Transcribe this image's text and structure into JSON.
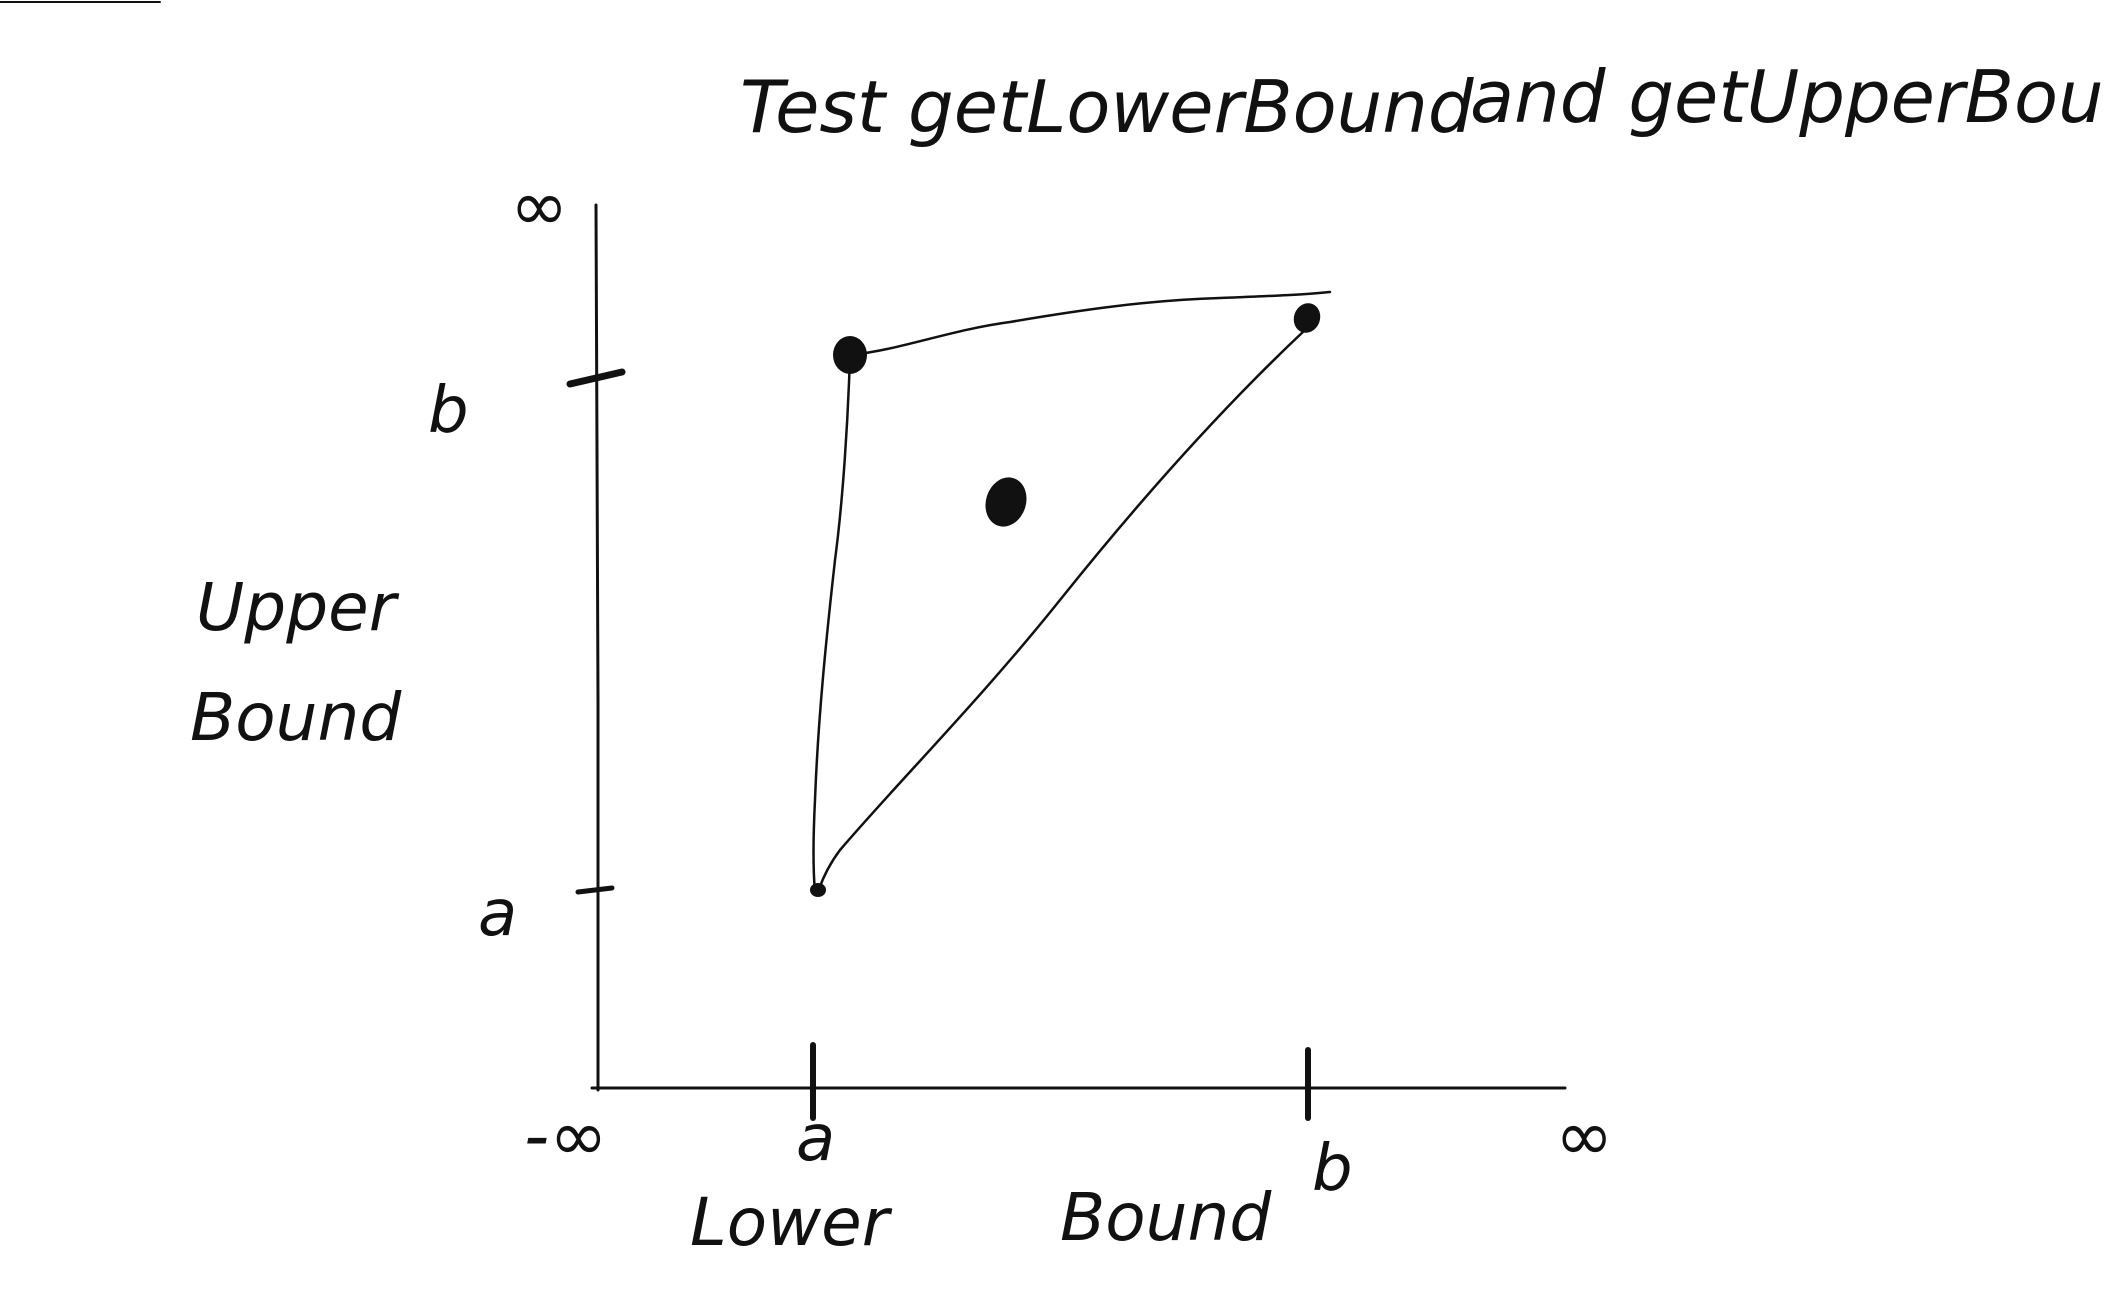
{
  "title": {
    "part1": "Test getLowerBound",
    "part2": "and getUpperBound"
  },
  "y_axis": {
    "label_line1": "Upper",
    "label_line2": "Bound",
    "top_label": "∞",
    "tick_b": "b",
    "tick_a": "a"
  },
  "x_axis": {
    "label_word1": "Lower",
    "label_word2": "Bound",
    "left_label": "-∞",
    "right_label": "∞",
    "tick_a": "a",
    "tick_b": "b"
  },
  "ink_color": "#111111"
}
